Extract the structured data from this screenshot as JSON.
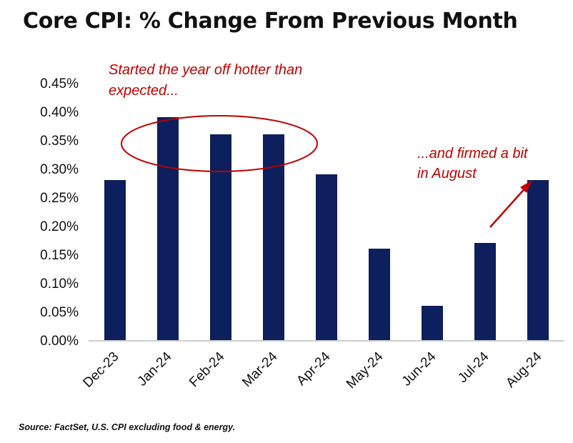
{
  "title": "Core CPI: % Change From Previous Month",
  "source": "Source: FactSet, U.S. CPI excluding food & energy.",
  "colors": {
    "bar": "#0d1f5c",
    "annotation": "#c00000",
    "axis": "#bfbfbf"
  },
  "annotations": {
    "top_line1": "Started the year off hotter than",
    "top_line2": "expected...",
    "right_line1": "...and firmed a bit",
    "right_line2": "in August"
  },
  "chart_data": {
    "type": "bar",
    "categories": [
      "Dec-23",
      "Jan-24",
      "Feb-24",
      "Mar-24",
      "Apr-24",
      "May-24",
      "Jun-24",
      "Jul-24",
      "Aug-24"
    ],
    "values": [
      0.28,
      0.39,
      0.36,
      0.36,
      0.29,
      0.16,
      0.06,
      0.17,
      0.28
    ],
    "ytick_labels": [
      "0.00%",
      "0.05%",
      "0.10%",
      "0.15%",
      "0.20%",
      "0.25%",
      "0.30%",
      "0.35%",
      "0.40%",
      "0.45%"
    ],
    "ylim": [
      0,
      0.45
    ],
    "grid": false,
    "legend": "none"
  }
}
